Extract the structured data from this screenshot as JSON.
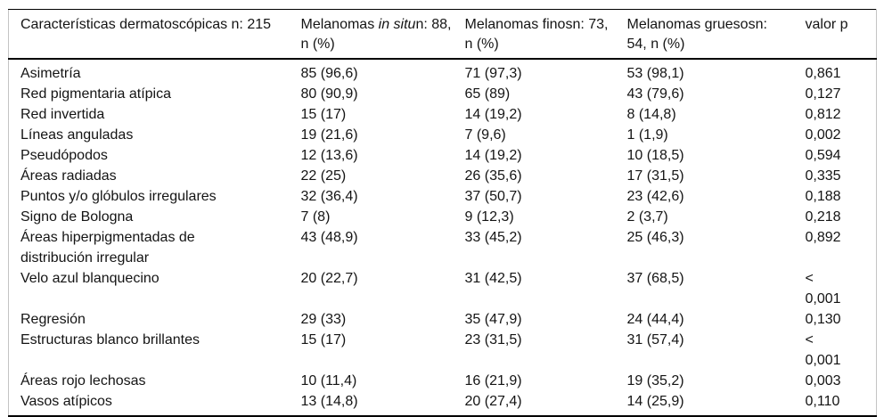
{
  "table": {
    "header": {
      "col1": "Características dermatoscópicas n: 215",
      "col2_prefix": "Melanomas ",
      "col2_italic": "in situ",
      "col2_suffix": "n: 88,",
      "col2_line2": "n (%)",
      "col3": "Melanomas finosn: 73,\nn (%)",
      "col4": "Melanomas gruesosn:\n54, n (%)",
      "col5": "valor p"
    },
    "rows": [
      {
        "label": "Asimetría",
        "insitu": "85 (96,6)",
        "finos": "71 (97,3)",
        "gruesos": "53 (98,1)",
        "p": "0,861"
      },
      {
        "label": "Red pigmentaria atípica",
        "insitu": "80 (90,9)",
        "finos": "65 (89)",
        "gruesos": "43 (79,6)",
        "p": "0,127"
      },
      {
        "label": "Red invertida",
        "insitu": "15 (17)",
        "finos": "14 (19,2)",
        "gruesos": "8 (14,8)",
        "p": "0,812"
      },
      {
        "label": "Líneas anguladas",
        "insitu": "19 (21,6)",
        "finos": "7 (9,6)",
        "gruesos": "1 (1,9)",
        "p": "0,002"
      },
      {
        "label": "Pseudópodos",
        "insitu": "12 (13,6)",
        "finos": "14 (19,2)",
        "gruesos": "10 (18,5)",
        "p": "0,594"
      },
      {
        "label": "Áreas radiadas",
        "insitu": "22 (25)",
        "finos": "26 (35,6)",
        "gruesos": "17 (31,5)",
        "p": "0,335"
      },
      {
        "label": "Puntos y/o glóbulos irregulares",
        "insitu": "32 (36,4)",
        "finos": "37 (50,7)",
        "gruesos": "23 (42,6)",
        "p": "0,188"
      },
      {
        "label": "Signo de Bologna",
        "insitu": "7 (8)",
        "finos": "9 (12,3)",
        "gruesos": "2 (3,7)",
        "p": "0,218"
      },
      {
        "label": "Áreas hiperpigmentadas de\ndistribución irregular",
        "insitu": "43 (48,9)",
        "finos": "33 (45,2)",
        "gruesos": "25 (46,3)",
        "p": "0,892"
      },
      {
        "label": "Velo azul blanquecino",
        "insitu": "20 (22,7)",
        "finos": "31 (42,5)",
        "gruesos": "37 (68,5)",
        "p": "<\n0,001"
      },
      {
        "label": "Regresión",
        "insitu": "29 (33)",
        "finos": "35 (47,9)",
        "gruesos": "24 (44,4)",
        "p": "0,130"
      },
      {
        "label": "Estructuras blanco brillantes",
        "insitu": "15 (17)",
        "finos": "23 (31,5)",
        "gruesos": "31 (57,4)",
        "p": "<\n0,001"
      },
      {
        "label": "Áreas rojo lechosas",
        "insitu": "10 (11,4)",
        "finos": "16 (21,9)",
        "gruesos": "19 (35,2)",
        "p": "0,003"
      },
      {
        "label": "Vasos atípicos",
        "insitu": "13 (14,8)",
        "finos": "20 (27,4)",
        "gruesos": "14 (25,9)",
        "p": "0,110"
      }
    ]
  }
}
